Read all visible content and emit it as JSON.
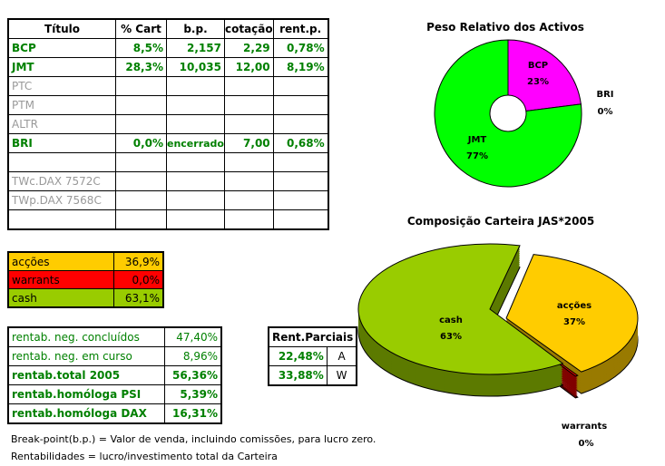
{
  "main_table": {
    "headers": [
      "Título",
      "% Cart",
      "b.p.",
      "cotação",
      "rent.p."
    ],
    "rows": [
      {
        "titulo": "BCP",
        "cart": "8,5%",
        "bp": "2,157",
        "cotacao": "2,29",
        "rent": "0,78%",
        "active": true
      },
      {
        "titulo": "JMT",
        "cart": "28,3%",
        "bp": "10,035",
        "cotacao": "12,00",
        "rent": "8,19%",
        "active": true
      },
      {
        "titulo": "PTC",
        "cart": "",
        "bp": "",
        "cotacao": "",
        "rent": "",
        "active": false
      },
      {
        "titulo": "PTM",
        "cart": "",
        "bp": "",
        "cotacao": "",
        "rent": "",
        "active": false
      },
      {
        "titulo": "ALTR",
        "cart": "",
        "bp": "",
        "cotacao": "",
        "rent": "",
        "active": false
      },
      {
        "titulo": "BRI",
        "cart": "0,0%",
        "bp": "encerrado",
        "cotacao": "7,00",
        "rent": "0,68%",
        "active": true
      },
      {
        "titulo": "",
        "cart": "",
        "bp": "",
        "cotacao": "",
        "rent": "",
        "active": false
      },
      {
        "titulo": "TWc.DAX 7572C",
        "cart": "",
        "bp": "",
        "cotacao": "",
        "rent": "",
        "active": false
      },
      {
        "titulo": "TWp.DAX 7568C",
        "cart": "",
        "bp": "",
        "cotacao": "",
        "rent": "",
        "active": false
      },
      {
        "titulo": "",
        "cart": "",
        "bp": "",
        "cotacao": "",
        "rent": "",
        "active": false
      }
    ]
  },
  "composition": [
    {
      "label": "acções",
      "value": "36,9%",
      "color": "#ffcc00"
    },
    {
      "label": "warrants",
      "value": "0,0%",
      "color": "#ff0000"
    },
    {
      "label": "cash",
      "value": "63,1%",
      "color": "#99cc00"
    }
  ],
  "rentabilidade": [
    {
      "label": "rentab. neg. concluídos",
      "value": "47,40%",
      "bold": false
    },
    {
      "label": "rentab. neg. em curso",
      "value": "8,96%",
      "bold": false
    },
    {
      "label": "rentab.total 2005",
      "value": "56,36%",
      "bold": true
    },
    {
      "label": "rentab.homóloga PSI",
      "value": "5,39%",
      "bold": true
    },
    {
      "label": "rentab.homóloga DAX",
      "value": "16,31%",
      "bold": true
    }
  ],
  "rent_parciais": {
    "title": "Rent.Parciais",
    "rows": [
      {
        "value": "22,48%",
        "code": "A"
      },
      {
        "value": "33,88%",
        "code": "W"
      }
    ]
  },
  "notes": [
    "Break-point(b.p.) = Valor de venda, incluindo comissões, para lucro zero.",
    "Rentabilidades = lucro/investimento total da Carteira"
  ],
  "chart_data": [
    {
      "type": "pie",
      "style": "doughnut",
      "title": "Peso Relativo dos Activos",
      "slices": [
        {
          "label": "BCP",
          "value": 23,
          "pct": "23%",
          "color": "#ff00ff"
        },
        {
          "label": "BRI",
          "value": 0,
          "pct": "0%",
          "color": "#ffff00"
        },
        {
          "label": "JMT",
          "value": 77,
          "pct": "77%",
          "color": "#00ff00"
        }
      ]
    },
    {
      "type": "pie",
      "style": "3d-exploded",
      "title": "Composição Carteira JAS*2005",
      "slices": [
        {
          "label": "acções",
          "value": 37,
          "pct": "37%",
          "color": "#ffcc00"
        },
        {
          "label": "warrants",
          "value": 0,
          "pct": "0%",
          "color": "#ff0000"
        },
        {
          "label": "cash",
          "value": 63,
          "pct": "63%",
          "color": "#99cc00"
        }
      ]
    }
  ]
}
